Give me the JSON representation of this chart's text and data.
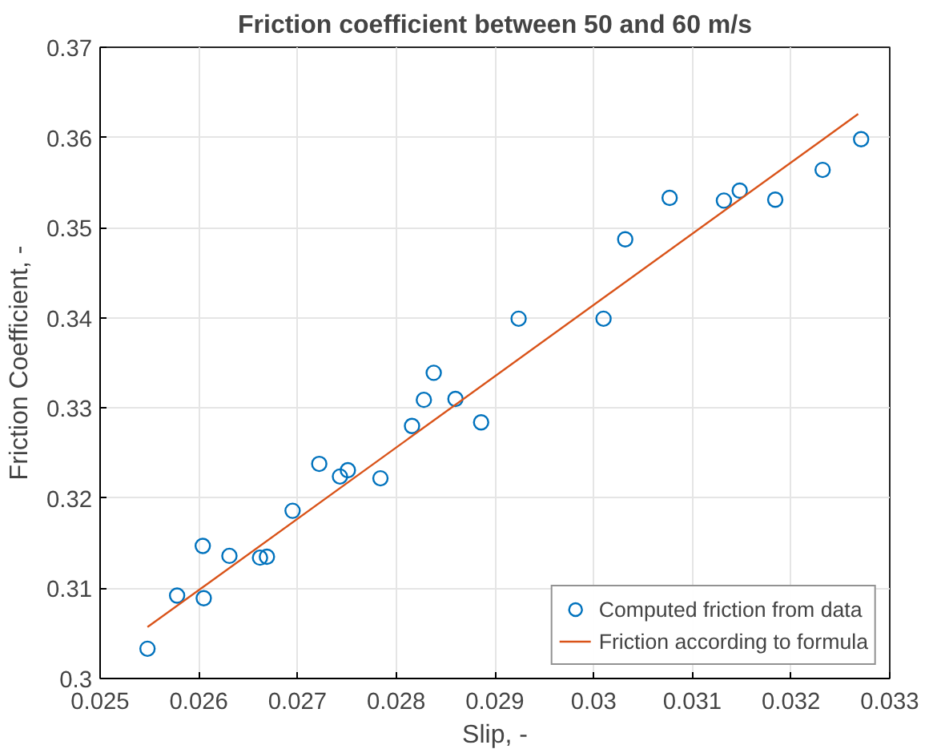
{
  "chart_data": {
    "type": "scatter",
    "title": "Friction coefficient between 50 and 60 m/s",
    "xlabel": "Slip, -",
    "ylabel": "Friction Coefficient, -",
    "xlim": [
      0.025,
      0.033
    ],
    "xticks": [
      0.025,
      0.026,
      0.027,
      0.028,
      0.029,
      0.03,
      0.031,
      0.032,
      0.033
    ],
    "ylim": [
      0.3,
      0.37
    ],
    "yticks": [
      0.3,
      0.31,
      0.32,
      0.33,
      0.34,
      0.35,
      0.36,
      0.37
    ],
    "grid": true,
    "legend": "bottom right",
    "series": [
      {
        "name": "Computed friction from data",
        "marker": "circle",
        "color": "#0072bd",
        "x": [
          0.02548,
          0.02578,
          0.02604,
          0.02605,
          0.02631,
          0.02662,
          0.02669,
          0.02695,
          0.02722,
          0.02743,
          0.02751,
          0.02784,
          0.02816,
          0.02828,
          0.02838,
          0.0286,
          0.02886,
          0.02924,
          0.0301,
          0.03032,
          0.03077,
          0.03132,
          0.03148,
          0.03184,
          0.03232,
          0.03271
        ],
        "values": [
          0.3033,
          0.3092,
          0.3147,
          0.3089,
          0.3136,
          0.3134,
          0.3135,
          0.3186,
          0.3238,
          0.3224,
          0.3231,
          0.3222,
          0.328,
          0.3309,
          0.3339,
          0.331,
          0.3284,
          0.3399,
          0.3399,
          0.3487,
          0.3533,
          0.353,
          0.3541,
          0.3531,
          0.3564,
          0.3598
        ]
      },
      {
        "name": "Friction according to formula",
        "type": "line",
        "color": "#d95319",
        "x": [
          0.02548,
          0.03268
        ],
        "values": [
          0.3057,
          0.3626
        ]
      }
    ]
  }
}
